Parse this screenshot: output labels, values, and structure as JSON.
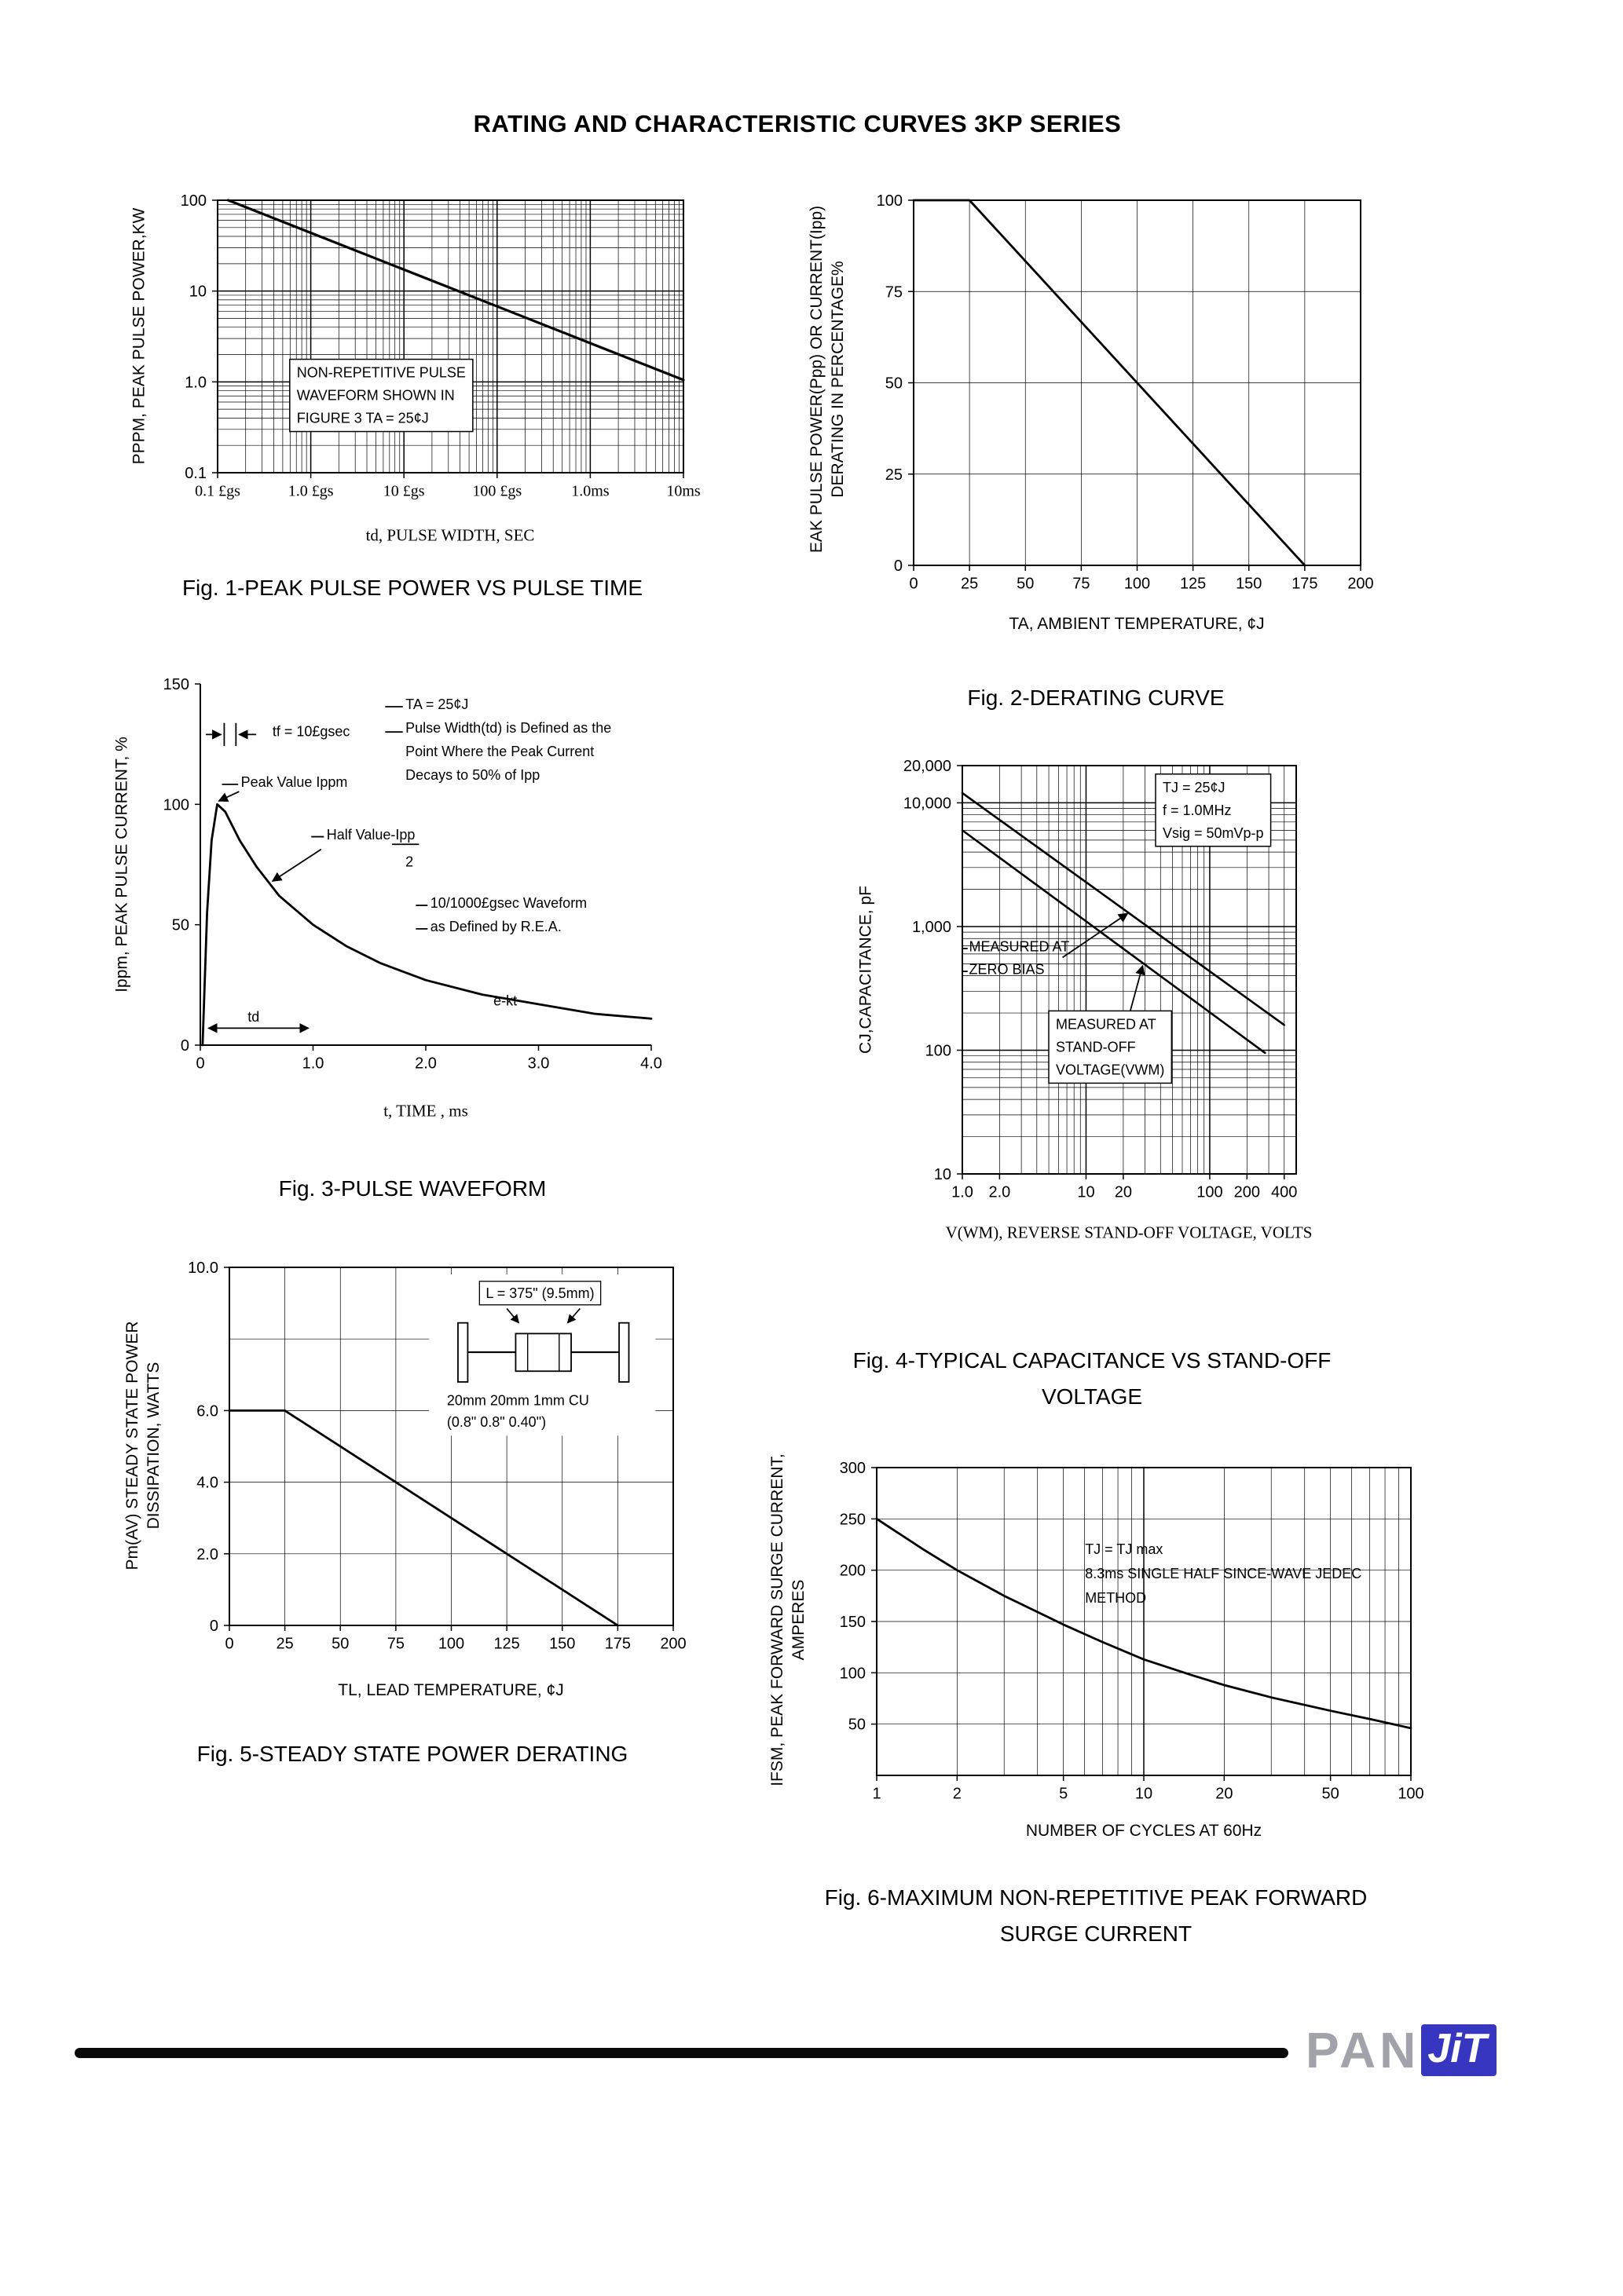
{
  "page": {
    "title": "RATING AND CHARACTERISTIC CURVES 3KP SERIES"
  },
  "footer": {
    "brand_pan": "PAN",
    "brand_jit": "JiT",
    "accent_blue": "#3636c0"
  },
  "chart_data": [
    {
      "id": "fig1-peak-pulse-power-vs-pulse-time",
      "type": "line",
      "title_lines": [
        "Fig. 1-PEAK PULSE POWER VS PULSE TIME"
      ],
      "x": {
        "scale": "log",
        "min": 1e-07,
        "max": 0.01,
        "grid": "log",
        "tickClass": "serif",
        "label": "td, PULSE WIDTH, SEC",
        "ticks": [
          {
            "v": 1e-07,
            "t": "0.1 £gs"
          },
          {
            "v": 1e-06,
            "t": "1.0 £gs"
          },
          {
            "v": 1e-05,
            "t": "10 £gs"
          },
          {
            "v": 0.0001,
            "t": "100 £gs"
          },
          {
            "v": 0.001,
            "t": "1.0ms"
          },
          {
            "v": 0.01,
            "t": "10ms"
          }
        ]
      },
      "y": {
        "scale": "log",
        "min": 0.1,
        "max": 100,
        "grid": "log",
        "label": [
          "PPPM, PEAK PULSE POWER,KW"
        ],
        "ticks": [
          {
            "v": 100,
            "t": "100"
          },
          {
            "v": 10,
            "t": "10"
          },
          {
            "v": 1,
            "t": "1.0"
          },
          {
            "v": 0.1,
            "t": "0.1"
          }
        ]
      },
      "series": [
        {
          "name": "peak pulse power",
          "width": 3.2,
          "points": [
            [
              1.3e-07,
              100
            ],
            [
              0.01,
              1.05
            ]
          ]
        }
      ],
      "annotations": [
        {
          "x": 17,
          "y": 65,
          "lh": 29,
          "box": true,
          "lines": [
            "NON-REPETITIVE PULSE",
            "WAVEFORM SHOWN IN",
            "FIGURE 3 TA = 25¢J"
          ]
        }
      ]
    },
    {
      "id": "fig2-derating-curve",
      "type": "line",
      "title_lines": [
        "Fig. 2-DERATING CURVE"
      ],
      "x": {
        "scale": "linear",
        "min": 0,
        "max": 200,
        "grid": "ticks",
        "label": "TA, AMBIENT TEMPERATURE,  ¢J",
        "ticks": [
          {
            "v": 0,
            "t": "0"
          },
          {
            "v": 25,
            "t": "25"
          },
          {
            "v": 50,
            "t": "50"
          },
          {
            "v": 75,
            "t": "75"
          },
          {
            "v": 100,
            "t": "100"
          },
          {
            "v": 125,
            "t": "125"
          },
          {
            "v": 150,
            "t": "150"
          },
          {
            "v": 175,
            "t": "175"
          },
          {
            "v": 200,
            "t": "200"
          }
        ]
      },
      "y": {
        "scale": "linear",
        "min": 0,
        "max": 100,
        "grid": "ticks",
        "label": [
          "EAK PULSE POWER(Ppp) OR CURRENT(Ipp)",
          "DERATING IN PERCENTAGE%"
        ],
        "ticks": [
          {
            "v": 0,
            "t": "0"
          },
          {
            "v": 25,
            "t": "25"
          },
          {
            "v": 50,
            "t": "50"
          },
          {
            "v": 75,
            "t": "75"
          },
          {
            "v": 100,
            "t": "100"
          }
        ]
      },
      "series": [
        {
          "name": "derating",
          "width": 2.8,
          "points": [
            [
              0,
              100
            ],
            [
              25,
              100
            ],
            [
              175,
              0
            ]
          ]
        }
      ]
    },
    {
      "id": "fig3-pulse-waveform",
      "type": "line",
      "frame": "axes",
      "title_lines": [
        "Fig. 3-PULSE WAVEFORM"
      ],
      "x": {
        "scale": "linear",
        "min": 0,
        "max": 4,
        "grid": "none",
        "label": "t, TIME , ms",
        "ticks": [
          {
            "v": 0,
            "t": "0"
          },
          {
            "v": 1,
            "t": "1.0"
          },
          {
            "v": 2,
            "t": "2.0"
          },
          {
            "v": 3,
            "t": "3.0"
          },
          {
            "v": 4,
            "t": "4.0"
          }
        ]
      },
      "y": {
        "scale": "linear",
        "min": 0,
        "max": 150,
        "grid": "none",
        "label": [
          "Ippm, PEAK PULSE CURRENT, %"
        ],
        "ticks": [
          {
            "v": 0,
            "t": "0"
          },
          {
            "v": 50,
            "t": "50"
          },
          {
            "v": 100,
            "t": "100"
          },
          {
            "v": 150,
            "t": "150"
          }
        ]
      },
      "series": [
        {
          "name": "pulse waveform",
          "width": 2.8,
          "points": [
            [
              0.02,
              0
            ],
            [
              0.06,
              55
            ],
            [
              0.1,
              85
            ],
            [
              0.15,
              100
            ],
            [
              0.22,
              97
            ],
            [
              0.35,
              85
            ],
            [
              0.5,
              74
            ],
            [
              0.7,
              62
            ],
            [
              1.0,
              50
            ],
            [
              1.3,
              41
            ],
            [
              1.6,
              34
            ],
            [
              2.0,
              27
            ],
            [
              2.5,
              21
            ],
            [
              3.0,
              17
            ],
            [
              3.5,
              13
            ],
            [
              4.0,
              11
            ]
          ]
        }
      ],
      "annotations": [
        {
          "x": 45.5,
          "y": 7,
          "lh": 30,
          "lines": [
            "TA = 25¢J",
            "Pulse Width(td) is Defined as the",
            "Point Where the Peak Current",
            "Decays to 50% of Ipp"
          ]
        },
        {
          "x": 16,
          "y": 14.5,
          "lines": [
            "tf = 10£gsec"
          ]
        },
        {
          "x": 9,
          "y": 28.5,
          "lines": [
            "Peak Value Ippm"
          ]
        },
        {
          "x": 28,
          "y": 43,
          "lines": [
            "Half Value-Ipp"
          ]
        },
        {
          "x": 45.5,
          "y": 50.5,
          "lines": [
            "2"
          ]
        },
        {
          "x": 51,
          "y": 62,
          "lh": 30,
          "lines": [
            "10/1000£gsec Waveform",
            "as Defined by R.E.A."
          ]
        },
        {
          "x": 65,
          "y": 89,
          "lines": [
            "e-kt"
          ]
        },
        {
          "x": 10.5,
          "y": 93.5,
          "lines": [
            "td"
          ]
        }
      ],
      "lines": [
        {
          "x1": 41,
          "y1": 6.3,
          "x2": 44.9,
          "y2": 6.3
        },
        {
          "x1": 41,
          "y1": 13.3,
          "x2": 44.9,
          "y2": 13.3
        },
        {
          "x1": 1.2,
          "y1": 14,
          "x2": 4.6,
          "y2": 14,
          "head": "end"
        },
        {
          "x1": 5.3,
          "y1": 10.8,
          "x2": 5.3,
          "y2": 17.2
        },
        {
          "x1": 7.9,
          "y1": 10.8,
          "x2": 7.9,
          "y2": 17.2
        },
        {
          "x1": 12.4,
          "y1": 14,
          "x2": 8.6,
          "y2": 14,
          "head": "end"
        },
        {
          "x1": 4.8,
          "y1": 27.8,
          "x2": 8.4,
          "y2": 27.8
        },
        {
          "x1": 8.6,
          "y1": 29.8,
          "x2": 4.1,
          "y2": 32.4,
          "head": "end"
        },
        {
          "x1": 24.6,
          "y1": 42.3,
          "x2": 27.4,
          "y2": 42.3
        },
        {
          "x1": 42.5,
          "y1": 44.4,
          "x2": 48.5,
          "y2": 44.4
        },
        {
          "x1": 26.8,
          "y1": 45.8,
          "x2": 16,
          "y2": 54.6,
          "head": "end"
        },
        {
          "x1": 47.8,
          "y1": 61.3,
          "x2": 50.4,
          "y2": 61.3
        },
        {
          "x1": 47.8,
          "y1": 67.8,
          "x2": 50.4,
          "y2": 67.8
        },
        {
          "x1": 1.8,
          "y1": 95.3,
          "x2": 24,
          "y2": 95.3,
          "head": "both"
        }
      ]
    },
    {
      "id": "fig4-typical-capacitance-vs-stand-off-voltage",
      "type": "line",
      "title_lines": [
        "Fig. 4-TYPICAL CAPACITANCE VS STAND-OFF",
        "VOLTAGE"
      ],
      "x": {
        "scale": "log",
        "min": 1,
        "max": 500,
        "grid": "log",
        "label": "V(WM), REVERSE STAND-OFF VOLTAGE, VOLTS",
        "ticks": [
          {
            "v": 1,
            "t": "1.0"
          },
          {
            "v": 2,
            "t": "2.0"
          },
          {
            "v": 10,
            "t": "10"
          },
          {
            "v": 20,
            "t": "20"
          },
          {
            "v": 100,
            "t": "100"
          },
          {
            "v": 200,
            "t": "200"
          },
          {
            "v": 400,
            "t": "400"
          }
        ]
      },
      "y": {
        "scale": "log",
        "min": 10,
        "max": 20000,
        "grid": "log",
        "label": [
          "CJ,CAPACITANCE, pF"
        ],
        "ticks": [
          {
            "v": 20000,
            "t": "20,000"
          },
          {
            "v": 10000,
            "t": "10,000"
          },
          {
            "v": 1000,
            "t": "1,000"
          },
          {
            "v": 100,
            "t": "100"
          },
          {
            "v": 10,
            "t": "10"
          }
        ]
      },
      "series": [
        {
          "name": "measured at zero bias",
          "width": 2.6,
          "points": [
            [
              1,
              12000
            ],
            [
              400,
              160
            ]
          ]
        },
        {
          "name": "measured at stand-off voltage",
          "width": 2.6,
          "points": [
            [
              1,
              6000
            ],
            [
              280,
              95
            ]
          ]
        }
      ],
      "annotations": [
        {
          "x": 60,
          "y": 6.5,
          "lh": 29,
          "box": true,
          "lines": [
            "TJ = 25¢J",
            "f = 1.0MHz",
            "Vsig = 50mVp-p"
          ]
        },
        {
          "x": 2,
          "y": 45.5,
          "lh": 29,
          "lines": [
            "MEASURED AT",
            "ZERO BIAS"
          ]
        },
        {
          "x": 28,
          "y": 64.5,
          "lh": 29,
          "box": true,
          "lines": [
            "MEASURED AT",
            "STAND-OFF",
            "VOLTAGE(VWM)"
          ]
        }
      ],
      "lines": [
        {
          "x1": 0,
          "y1": 44.8,
          "x2": 1.6,
          "y2": 44.8
        },
        {
          "x1": 0,
          "y1": 50.4,
          "x2": 1.6,
          "y2": 50.4
        },
        {
          "x1": 30,
          "y1": 47,
          "x2": 49.5,
          "y2": 36.2,
          "head": "end"
        },
        {
          "x1": 50,
          "y1": 61,
          "x2": 54,
          "y2": 49,
          "head": "end"
        }
      ]
    },
    {
      "id": "fig5-steady-state-power-derating",
      "type": "line",
      "title_lines": [
        "Fig. 5-STEADY STATE POWER DERATING"
      ],
      "x": {
        "scale": "linear",
        "min": 0,
        "max": 200,
        "grid": "ticks",
        "label": "TL, LEAD TEMPERATURE,  ¢J",
        "ticks": [
          {
            "v": 0,
            "t": "0"
          },
          {
            "v": 25,
            "t": "25"
          },
          {
            "v": 50,
            "t": "50"
          },
          {
            "v": 75,
            "t": "75"
          },
          {
            "v": 100,
            "t": "100"
          },
          {
            "v": 125,
            "t": "125"
          },
          {
            "v": 150,
            "t": "150"
          },
          {
            "v": 175,
            "t": "175"
          },
          {
            "v": 200,
            "t": "200"
          }
        ]
      },
      "y": {
        "scale": "linear",
        "min": 0,
        "max": 10,
        "grid": "ticks",
        "gridValues": [
          2,
          4,
          6,
          8,
          10
        ],
        "label": [
          "Pm(AV) STEADY STATE POWER",
          "DISSIPATION, WATTS"
        ],
        "ticks": [
          {
            "v": 0,
            "t": "0"
          },
          {
            "v": 2,
            "t": "2.0"
          },
          {
            "v": 4,
            "t": "4.0"
          },
          {
            "v": 6,
            "t": "6.0"
          },
          {
            "v": 10,
            "t": "10.0"
          }
        ]
      },
      "series": [
        {
          "name": "steady state power",
          "width": 2.8,
          "points": [
            [
              0,
              6
            ],
            [
              25,
              6
            ],
            [
              175,
              0
            ]
          ]
        }
      ],
      "inset": {
        "label": "L = 375\" (9.5mm)",
        "dims": "20mm    20mm    1mm CU",
        "dims2": "(0.8\"     0.8\"     0.40\")"
      }
    },
    {
      "id": "fig6-maximum-non-repetitive-peak-forward-surge-current",
      "type": "line",
      "title_lines": [
        "Fig. 6-MAXIMUM NON-REPETITIVE PEAK FORWARD",
        "SURGE CURRENT"
      ],
      "x": {
        "scale": "log",
        "min": 1,
        "max": 100,
        "grid": "log",
        "label": "NUMBER OF CYCLES AT 60Hz",
        "ticks": [
          {
            "v": 1,
            "t": "1"
          },
          {
            "v": 2,
            "t": "2"
          },
          {
            "v": 5,
            "t": "5"
          },
          {
            "v": 10,
            "t": "10"
          },
          {
            "v": 20,
            "t": "20"
          },
          {
            "v": 50,
            "t": "50"
          },
          {
            "v": 100,
            "t": "100"
          }
        ]
      },
      "y": {
        "scale": "linear",
        "min": 0,
        "max": 300,
        "grid": "ticks",
        "gridValues": [
          50,
          100,
          150,
          200,
          250,
          300
        ],
        "label": [
          "IFSM, PEAK FORWARD SURGE CURRENT,",
          "AMPERES"
        ],
        "ticks": [
          {
            "v": 50,
            "t": "50"
          },
          {
            "v": 100,
            "t": "100"
          },
          {
            "v": 150,
            "t": "150"
          },
          {
            "v": 200,
            "t": "200"
          },
          {
            "v": 250,
            "t": "250"
          },
          {
            "v": 300,
            "t": "300"
          }
        ]
      },
      "series": [
        {
          "name": "surge current",
          "width": 2.8,
          "points": [
            [
              1,
              250
            ],
            [
              1.5,
              220
            ],
            [
              2,
              200
            ],
            [
              3,
              175
            ],
            [
              5,
              147
            ],
            [
              7,
              130
            ],
            [
              10,
              113
            ],
            [
              15,
              98
            ],
            [
              20,
              88
            ],
            [
              30,
              76
            ],
            [
              50,
              63
            ],
            [
              70,
              55
            ],
            [
              100,
              46
            ]
          ]
        }
      ],
      "annotations": [
        {
          "x": 39,
          "y": 28,
          "lh": 31,
          "lines": [
            "TJ = TJ max",
            "8.3ms SINGLE HALF SINCE-WAVE JEDEC",
            "METHOD"
          ]
        }
      ]
    }
  ]
}
